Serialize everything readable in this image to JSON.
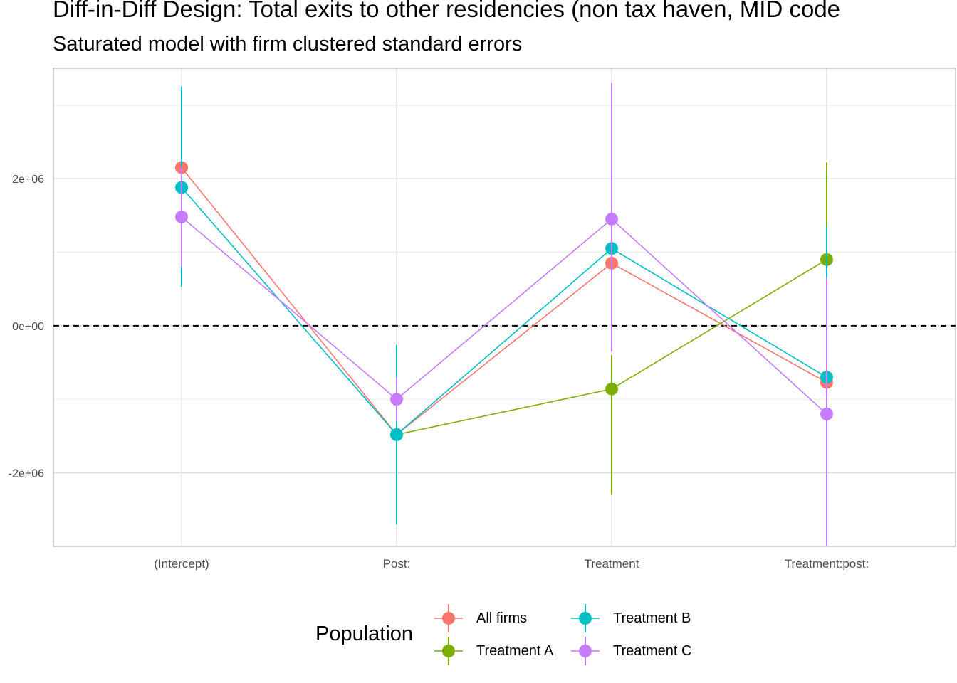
{
  "chart_data": {
    "type": "line",
    "title": "Diff-in-Diff Design: Total exits to other residencies (non tax haven, MID code",
    "subtitle": "Saturated model with firm clustered standard errors",
    "xlabel": "",
    "ylabel": "",
    "categories": [
      "(Intercept)",
      "Post:",
      "Treatment",
      "Treatment:post:"
    ],
    "ylim": [
      -3000000,
      3500000
    ],
    "y_ticks": [
      -2000000,
      0,
      2000000
    ],
    "y_tick_labels": [
      "-2e+06",
      "0e+00",
      "2e+06"
    ],
    "reference_line": {
      "y": 0,
      "style": "dashed"
    },
    "grid": true,
    "legend_title": "Population",
    "legend_position": "bottom",
    "series": [
      {
        "name": "All firms",
        "color": "#F8766D",
        "values": [
          2150000,
          -1480000,
          850000,
          -770000
        ],
        "lower": [
          1050000,
          -2150000,
          -300000,
          -1700000
        ],
        "upper": [
          3250000,
          -800000,
          2000000,
          160000
        ]
      },
      {
        "name": "Treatment A",
        "color": "#7CAE00",
        "values": [
          null,
          -1480000,
          -860000,
          900000
        ],
        "lower": [
          null,
          -2100000,
          -2300000,
          -420000
        ],
        "upper": [
          null,
          -860000,
          -400000,
          2220000
        ]
      },
      {
        "name": "Treatment B",
        "color": "#00BFC4",
        "values": [
          1880000,
          -1480000,
          1050000,
          -700000
        ],
        "lower": [
          530000,
          -2700000,
          -150000,
          -1150000
        ],
        "upper": [
          3250000,
          -260000,
          2250000,
          1350000
        ]
      },
      {
        "name": "Treatment C",
        "color": "#C77CFF",
        "values": [
          1480000,
          -1000000,
          1450000,
          -1200000
        ],
        "lower": [
          800000,
          -1300000,
          -350000,
          -3000000
        ],
        "upper": [
          2150000,
          -700000,
          3300000,
          650000
        ]
      }
    ]
  }
}
